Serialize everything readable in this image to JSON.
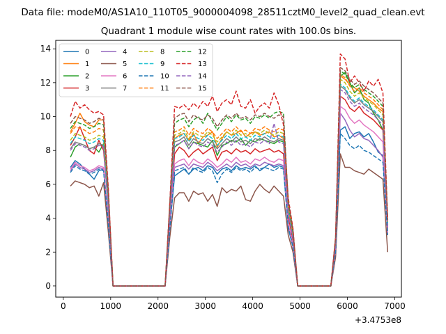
{
  "suptitle": "Data file: modeM0/AS1A10_110T05_9000004098_28511cztM0_level2_quad_clean.evt",
  "chart_data": {
    "type": "line",
    "title": "Quadrant 1 module wise count rates with 100.0s bins.",
    "xlabel": "",
    "ylabel": "",
    "x_offset_label": "+3.4753e8",
    "xlim": [
      -160,
      7140
    ],
    "ylim": [
      -0.66,
      14.5
    ],
    "xticks": [
      0,
      1000,
      2000,
      3000,
      4000,
      5000,
      6000,
      7000
    ],
    "yticks": [
      0,
      2,
      4,
      6,
      8,
      10,
      12,
      14
    ],
    "grid": false,
    "legend_position": "top-left",
    "legend_columns": 4,
    "x": [
      150,
      250,
      350,
      450,
      550,
      650,
      750,
      850,
      950,
      1050,
      1150,
      1250,
      1350,
      1450,
      1550,
      1650,
      1750,
      1850,
      1950,
      2050,
      2150,
      2250,
      2350,
      2450,
      2550,
      2650,
      2750,
      2850,
      2950,
      3050,
      3150,
      3250,
      3350,
      3450,
      3550,
      3650,
      3750,
      3850,
      3950,
      4050,
      4150,
      4250,
      4350,
      4450,
      4550,
      4650,
      4750,
      4850,
      4950,
      5050,
      5150,
      5250,
      5350,
      5450,
      5550,
      5650,
      5750,
      5850,
      5950,
      6050,
      6150,
      6250,
      6350,
      6450,
      6550,
      6650,
      6750,
      6850
    ],
    "series": [
      {
        "name": "0",
        "color": "#1f77b4",
        "dashed": false,
        "values": [
          7.0,
          7.4,
          7.2,
          6.9,
          6.6,
          6.3,
          6.8,
          6.9,
          3.6,
          0,
          0,
          0,
          0,
          0,
          0,
          0,
          0,
          0,
          0,
          0,
          0,
          3.5,
          6.5,
          6.7,
          6.9,
          6.6,
          6.9,
          7.0,
          6.8,
          7.1,
          7.0,
          6.6,
          6.9,
          7.0,
          6.8,
          7.1,
          6.9,
          7.0,
          6.9,
          7.1,
          6.8,
          7.0,
          7.2,
          7.0,
          7.1,
          7.0,
          3.4,
          2.3,
          0,
          0,
          0,
          0,
          0,
          0,
          0,
          0,
          2.0,
          9.2,
          9.4,
          8.7,
          9.0,
          9.1,
          8.8,
          9.0,
          8.5,
          7.9,
          7.7,
          3.5
        ]
      },
      {
        "name": "1",
        "color": "#ff7f0e",
        "dashed": false,
        "values": [
          9.1,
          9.6,
          10.2,
          9.7,
          9.5,
          9.4,
          9.8,
          9.8,
          5.5,
          0,
          0,
          0,
          0,
          0,
          0,
          0,
          0,
          0,
          0,
          0,
          0,
          4.8,
          8.7,
          8.9,
          9.0,
          8.6,
          9.0,
          8.4,
          8.8,
          8.9,
          9.1,
          8.2,
          8.7,
          9.1,
          8.9,
          9.0,
          9.2,
          8.8,
          9.0,
          9.1,
          8.9,
          9.0,
          9.1,
          8.8,
          8.9,
          8.7,
          4.6,
          3.0,
          0,
          0,
          0,
          0,
          0,
          0,
          0,
          0,
          2.6,
          12.4,
          12.2,
          11.9,
          11.7,
          11.5,
          11.2,
          11.0,
          10.8,
          10.5,
          10.3,
          3.8
        ]
      },
      {
        "name": "2",
        "color": "#2ca02c",
        "dashed": false,
        "values": [
          7.6,
          8.2,
          8.4,
          8.3,
          8.1,
          8.2,
          7.9,
          8.4,
          5.0,
          0,
          0,
          0,
          0,
          0,
          0,
          0,
          0,
          0,
          0,
          0,
          0,
          4.2,
          8.2,
          8.4,
          8.6,
          8.1,
          8.5,
          8.4,
          8.3,
          8.2,
          8.6,
          7.7,
          8.3,
          8.4,
          8.6,
          8.5,
          8.7,
          8.3,
          8.6,
          8.5,
          8.7,
          8.6,
          8.5,
          8.4,
          8.6,
          8.5,
          4.4,
          2.9,
          0,
          0,
          0,
          0,
          0,
          0,
          0,
          0,
          2.5,
          12.4,
          12.6,
          12.0,
          11.4,
          11.7,
          11.0,
          10.8,
          10.2,
          9.8,
          9.2,
          3.6
        ]
      },
      {
        "name": "3",
        "color": "#d62728",
        "dashed": false,
        "values": [
          8.3,
          8.8,
          9.4,
          8.7,
          8.0,
          7.8,
          8.6,
          8.0,
          4.8,
          0,
          0,
          0,
          0,
          0,
          0,
          0,
          0,
          0,
          0,
          0,
          0,
          4.0,
          7.8,
          8.2,
          8.0,
          7.6,
          7.9,
          8.1,
          7.8,
          8.0,
          8.2,
          7.4,
          7.9,
          8.0,
          7.8,
          8.1,
          7.9,
          8.0,
          7.8,
          8.1,
          7.9,
          8.0,
          8.1,
          7.9,
          8.0,
          7.8,
          4.1,
          2.7,
          0,
          0,
          0,
          0,
          0,
          0,
          0,
          0,
          2.4,
          11.2,
          11.0,
          10.5,
          10.3,
          10.6,
          10.2,
          10.0,
          9.8,
          9.5,
          9.2,
          3.4
        ]
      },
      {
        "name": "4",
        "color": "#9467bd",
        "dashed": false,
        "values": [
          6.8,
          7.2,
          7.0,
          6.9,
          6.7,
          6.8,
          7.0,
          6.9,
          3.8,
          0,
          0,
          0,
          0,
          0,
          0,
          0,
          0,
          0,
          0,
          0,
          0,
          3.4,
          7.0,
          7.1,
          7.2,
          6.9,
          7.2,
          7.1,
          7.0,
          7.3,
          7.1,
          6.8,
          7.0,
          7.2,
          7.0,
          7.3,
          7.1,
          7.2,
          7.0,
          7.2,
          7.1,
          7.3,
          7.2,
          7.1,
          7.2,
          7.1,
          3.5,
          2.3,
          0,
          0,
          0,
          0,
          0,
          0,
          0,
          0,
          2.0,
          10.2,
          9.8,
          9.2,
          8.8,
          9.0,
          8.7,
          8.6,
          8.3,
          8.0,
          7.6,
          3.1
        ]
      },
      {
        "name": "5",
        "color": "#8c564b",
        "dashed": false,
        "values": [
          5.9,
          6.2,
          6.1,
          6.0,
          5.8,
          5.9,
          5.3,
          6.1,
          3.2,
          0,
          0,
          0,
          0,
          0,
          0,
          0,
          0,
          0,
          0,
          0,
          0,
          2.9,
          5.2,
          5.5,
          5.5,
          5.0,
          5.6,
          5.4,
          5.5,
          5.0,
          5.4,
          4.7,
          5.8,
          5.5,
          5.7,
          5.6,
          5.9,
          5.1,
          5.0,
          5.6,
          6.0,
          5.7,
          5.5,
          5.9,
          5.6,
          5.3,
          3.0,
          2.0,
          0,
          0,
          0,
          0,
          0,
          0,
          0,
          0,
          1.7,
          7.8,
          7.0,
          7.0,
          6.8,
          6.7,
          6.6,
          6.9,
          6.7,
          6.5,
          6.3,
          2.0
        ]
      },
      {
        "name": "6",
        "color": "#e377c2",
        "dashed": false,
        "values": [
          6.9,
          7.3,
          7.1,
          7.0,
          6.8,
          6.9,
          7.1,
          7.0,
          3.9,
          0,
          0,
          0,
          0,
          0,
          0,
          0,
          0,
          0,
          0,
          0,
          0,
          3.6,
          7.2,
          7.4,
          7.5,
          7.1,
          7.5,
          7.3,
          7.2,
          7.5,
          7.3,
          7.0,
          7.2,
          7.5,
          7.3,
          7.6,
          7.3,
          7.4,
          7.2,
          7.5,
          7.4,
          7.6,
          7.4,
          7.3,
          7.5,
          7.4,
          3.7,
          2.4,
          0,
          0,
          0,
          0,
          0,
          0,
          0,
          0,
          2.1,
          10.6,
          10.4,
          9.9,
          9.6,
          9.8,
          9.5,
          9.3,
          9.1,
          8.8,
          8.5,
          3.2
        ]
      },
      {
        "name": "7",
        "color": "#7f7f7f",
        "dashed": false,
        "values": [
          8.1,
          8.5,
          8.4,
          8.3,
          8.1,
          8.2,
          8.4,
          8.3,
          4.6,
          0,
          0,
          0,
          0,
          0,
          0,
          0,
          0,
          0,
          0,
          0,
          0,
          4.3,
          8.5,
          8.6,
          8.8,
          8.3,
          8.7,
          8.5,
          8.4,
          8.7,
          8.5,
          8.1,
          8.4,
          8.7,
          8.5,
          8.8,
          8.5,
          8.6,
          8.4,
          8.7,
          8.6,
          8.8,
          8.6,
          8.5,
          8.7,
          8.6,
          4.4,
          2.9,
          0,
          0,
          0,
          0,
          0,
          0,
          0,
          0,
          2.5,
          11.8,
          11.6,
          11.1,
          10.8,
          11.0,
          10.7,
          10.5,
          10.3,
          10.0,
          9.7,
          3.6
        ]
      },
      {
        "name": "8",
        "color": "#bcbd22",
        "dashed": true,
        "values": [
          8.6,
          9.0,
          8.9,
          8.8,
          8.6,
          8.7,
          8.9,
          8.8,
          4.9,
          0,
          0,
          0,
          0,
          0,
          0,
          0,
          0,
          0,
          0,
          0,
          0,
          4.5,
          8.9,
          9.0,
          9.2,
          8.7,
          9.1,
          8.9,
          8.8,
          9.1,
          8.9,
          8.5,
          8.8,
          9.1,
          8.9,
          9.2,
          8.9,
          9.0,
          8.8,
          9.1,
          9.0,
          9.2,
          9.0,
          8.9,
          9.1,
          9.0,
          4.6,
          3.0,
          0,
          0,
          0,
          0,
          0,
          0,
          0,
          0,
          2.6,
          12.2,
          12.0,
          11.5,
          11.2,
          11.4,
          11.1,
          10.9,
          10.7,
          10.4,
          10.1,
          3.7
        ]
      },
      {
        "name": "9",
        "color": "#17becf",
        "dashed": true,
        "values": [
          8.4,
          8.8,
          8.7,
          8.6,
          8.4,
          8.5,
          8.7,
          8.6,
          4.8,
          0,
          0,
          0,
          0,
          0,
          0,
          0,
          0,
          0,
          0,
          0,
          0,
          4.4,
          8.7,
          8.8,
          9.0,
          8.5,
          8.9,
          8.7,
          8.6,
          8.9,
          8.7,
          8.3,
          8.6,
          8.9,
          8.7,
          9.0,
          8.7,
          8.8,
          8.6,
          8.9,
          8.8,
          9.0,
          8.8,
          8.7,
          8.9,
          8.8,
          4.5,
          2.9,
          0,
          0,
          0,
          0,
          0,
          0,
          0,
          0,
          2.5,
          11.9,
          11.7,
          11.2,
          10.9,
          11.1,
          10.8,
          10.6,
          10.4,
          10.1,
          9.8,
          3.6
        ]
      },
      {
        "name": "10",
        "color": "#1f77b4",
        "dashed": true,
        "values": [
          6.7,
          7.1,
          6.9,
          6.8,
          6.6,
          6.7,
          6.9,
          6.8,
          3.7,
          0,
          0,
          0,
          0,
          0,
          0,
          0,
          0,
          0,
          0,
          0,
          0,
          3.4,
          6.8,
          6.9,
          7.0,
          6.6,
          7.0,
          6.8,
          6.7,
          7.0,
          6.8,
          6.1,
          6.6,
          6.9,
          6.7,
          7.0,
          6.8,
          6.9,
          6.7,
          7.0,
          6.9,
          7.0,
          6.9,
          6.8,
          7.0,
          6.9,
          3.5,
          2.3,
          0,
          0,
          0,
          0,
          0,
          0,
          0,
          0,
          2.0,
          9.0,
          8.7,
          8.3,
          8.1,
          8.3,
          8.0,
          7.9,
          7.7,
          7.5,
          7.3,
          3.0
        ]
      },
      {
        "name": "11",
        "color": "#ff7f0e",
        "dashed": true,
        "values": [
          9.0,
          9.4,
          9.3,
          9.2,
          9.0,
          9.1,
          9.3,
          9.2,
          5.2,
          0,
          0,
          0,
          0,
          0,
          0,
          0,
          0,
          0,
          0,
          0,
          0,
          4.7,
          9.1,
          9.2,
          9.4,
          8.9,
          9.3,
          9.1,
          9.0,
          9.3,
          9.1,
          8.7,
          9.0,
          9.3,
          9.1,
          9.4,
          9.1,
          9.2,
          9.0,
          9.3,
          9.2,
          9.4,
          9.2,
          9.1,
          9.3,
          9.2,
          4.7,
          3.1,
          0,
          0,
          0,
          0,
          0,
          0,
          0,
          0,
          2.7,
          12.5,
          12.3,
          11.8,
          11.5,
          11.7,
          11.4,
          11.2,
          11.0,
          10.7,
          10.4,
          3.8
        ]
      },
      {
        "name": "12",
        "color": "#2ca02c",
        "dashed": true,
        "values": [
          9.3,
          9.7,
          9.6,
          9.5,
          9.3,
          9.4,
          9.6,
          9.5,
          5.4,
          0,
          0,
          0,
          0,
          0,
          0,
          0,
          0,
          0,
          0,
          0,
          0,
          4.8,
          9.6,
          9.8,
          9.9,
          9.4,
          9.8,
          10.0,
          9.6,
          10.2,
          9.7,
          9.2,
          9.6,
          10.0,
          9.7,
          10.1,
          9.8,
          9.9,
          9.6,
          10.0,
          9.9,
          10.1,
          9.9,
          10.2,
          10.3,
          10.2,
          4.9,
          3.2,
          0,
          0,
          0,
          0,
          0,
          0,
          0,
          0,
          2.8,
          12.7,
          12.5,
          12.0,
          11.7,
          11.9,
          11.6,
          11.4,
          11.2,
          10.9,
          10.6,
          3.9
        ]
      },
      {
        "name": "13",
        "color": "#d62728",
        "dashed": true,
        "values": [
          10.0,
          10.9,
          10.5,
          10.7,
          10.4,
          10.2,
          10.3,
          10.1,
          5.8,
          0,
          0,
          0,
          0,
          0,
          0,
          0,
          0,
          0,
          0,
          0,
          0,
          5.0,
          10.6,
          10.5,
          10.7,
          10.4,
          10.8,
          10.5,
          10.9,
          10.6,
          11.2,
          10.3,
          10.8,
          11.0,
          10.7,
          11.5,
          10.6,
          10.5,
          11.0,
          10.2,
          10.6,
          10.8,
          10.5,
          11.4,
          10.7,
          9.5,
          5.2,
          3.4,
          0,
          0,
          0,
          0,
          0,
          0,
          0,
          0,
          2.9,
          13.7,
          13.4,
          12.0,
          12.4,
          12.0,
          11.5,
          12.1,
          11.8,
          12.2,
          11.4,
          4.0
        ]
      },
      {
        "name": "14",
        "color": "#9467bd",
        "dashed": true,
        "values": [
          8.0,
          8.4,
          8.3,
          8.2,
          8.0,
          8.1,
          8.3,
          8.2,
          4.6,
          0,
          0,
          0,
          0,
          0,
          0,
          0,
          0,
          0,
          0,
          0,
          0,
          4.2,
          8.3,
          8.4,
          8.6,
          8.1,
          8.5,
          8.3,
          8.2,
          8.5,
          8.3,
          7.9,
          8.2,
          8.5,
          8.3,
          8.6,
          8.3,
          8.4,
          8.2,
          8.5,
          8.4,
          8.6,
          8.4,
          9.6,
          8.5,
          8.4,
          4.3,
          2.8,
          0,
          0,
          0,
          0,
          0,
          0,
          0,
          0,
          2.4,
          11.6,
          11.4,
          10.9,
          10.6,
          10.8,
          10.5,
          10.3,
          10.1,
          9.8,
          9.5,
          3.5
        ]
      },
      {
        "name": "15",
        "color": "#8c564b",
        "dashed": true,
        "values": [
          9.6,
          10.0,
          9.9,
          9.8,
          9.6,
          9.7,
          9.9,
          9.8,
          5.6,
          0,
          0,
          0,
          0,
          0,
          0,
          0,
          0,
          0,
          0,
          0,
          0,
          4.9,
          9.9,
          10.1,
          10.2,
          9.7,
          10.1,
          9.9,
          9.8,
          10.1,
          9.9,
          9.4,
          9.8,
          10.1,
          9.9,
          10.2,
          9.9,
          10.0,
          9.8,
          10.1,
          10.0,
          10.2,
          10.0,
          9.9,
          10.1,
          10.0,
          5.0,
          3.3,
          0,
          0,
          0,
          0,
          0,
          0,
          0,
          0,
          2.8,
          12.9,
          12.7,
          12.2,
          11.9,
          12.1,
          11.8,
          11.6,
          11.4,
          11.1,
          10.8,
          3.9
        ]
      }
    ]
  }
}
